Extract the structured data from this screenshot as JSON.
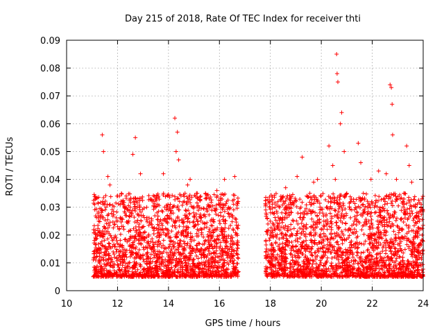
{
  "chart_data": {
    "type": "scatter",
    "title": "Day 215 of 2018, Rate Of TEC Index for receiver thti",
    "xlabel": "GPS time / hours",
    "ylabel": "ROTI / TECUs",
    "xlim": [
      10,
      24
    ],
    "ylim": [
      0,
      0.09
    ],
    "xticks": [
      "10",
      "12",
      "14",
      "16",
      "18",
      "20",
      "22",
      "24"
    ],
    "yticks": [
      "0",
      "0.01",
      "0.02",
      "0.03",
      "0.04",
      "0.05",
      "0.06",
      "0.07",
      "0.08",
      "0.09"
    ],
    "grid": true,
    "marker": "+",
    "color": "#ff0000",
    "observation_windows": [
      [
        11.05,
        16.75
      ],
      [
        17.8,
        24.0
      ]
    ],
    "background_range": [
      0.005,
      0.035
    ],
    "x": [
      11.1,
      11.2,
      11.35,
      11.4,
      11.45,
      11.55,
      11.62,
      11.7,
      11.8,
      11.95,
      12.05,
      12.2,
      12.35,
      12.5,
      12.6,
      12.7,
      12.8,
      12.9,
      13.05,
      13.2,
      13.4,
      13.55,
      13.7,
      13.8,
      13.95,
      14.1,
      14.2,
      14.25,
      14.3,
      14.35,
      14.4,
      14.5,
      14.65,
      14.75,
      14.85,
      14.95,
      15.1,
      15.3,
      15.45,
      15.6,
      15.75,
      15.9,
      16.05,
      16.2,
      16.3,
      16.45,
      16.55,
      16.6,
      16.65,
      17.85,
      18.0,
      18.2,
      18.3,
      18.45,
      18.6,
      18.8,
      18.9,
      19.05,
      19.2,
      19.25,
      19.4,
      19.55,
      19.7,
      19.85,
      19.95,
      20.1,
      20.3,
      20.45,
      20.55,
      20.6,
      20.62,
      20.65,
      20.75,
      20.8,
      20.9,
      21.0,
      21.1,
      21.3,
      21.45,
      21.55,
      21.65,
      21.8,
      21.95,
      22.1,
      22.25,
      22.4,
      22.55,
      22.7,
      22.75,
      22.78,
      22.8,
      22.95,
      23.1,
      23.25,
      23.35,
      23.45,
      23.55,
      23.7,
      23.85,
      23.95
    ],
    "y": [
      0.012,
      0.02,
      0.015,
      0.056,
      0.05,
      0.03,
      0.041,
      0.038,
      0.018,
      0.025,
      0.014,
      0.032,
      0.027,
      0.03,
      0.049,
      0.055,
      0.033,
      0.042,
      0.018,
      0.012,
      0.014,
      0.028,
      0.022,
      0.042,
      0.03,
      0.018,
      0.025,
      0.062,
      0.05,
      0.057,
      0.047,
      0.02,
      0.035,
      0.038,
      0.04,
      0.03,
      0.035,
      0.022,
      0.018,
      0.033,
      0.025,
      0.036,
      0.03,
      0.04,
      0.01,
      0.012,
      0.008,
      0.041,
      0.02,
      0.015,
      0.012,
      0.02,
      0.032,
      0.028,
      0.037,
      0.022,
      0.025,
      0.041,
      0.03,
      0.048,
      0.018,
      0.035,
      0.039,
      0.04,
      0.03,
      0.025,
      0.052,
      0.045,
      0.04,
      0.085,
      0.078,
      0.075,
      0.06,
      0.064,
      0.05,
      0.035,
      0.03,
      0.025,
      0.053,
      0.046,
      0.035,
      0.03,
      0.04,
      0.028,
      0.043,
      0.03,
      0.042,
      0.074,
      0.073,
      0.067,
      0.056,
      0.04,
      0.033,
      0.028,
      0.052,
      0.045,
      0.039,
      0.03,
      0.025,
      0.033
    ]
  }
}
